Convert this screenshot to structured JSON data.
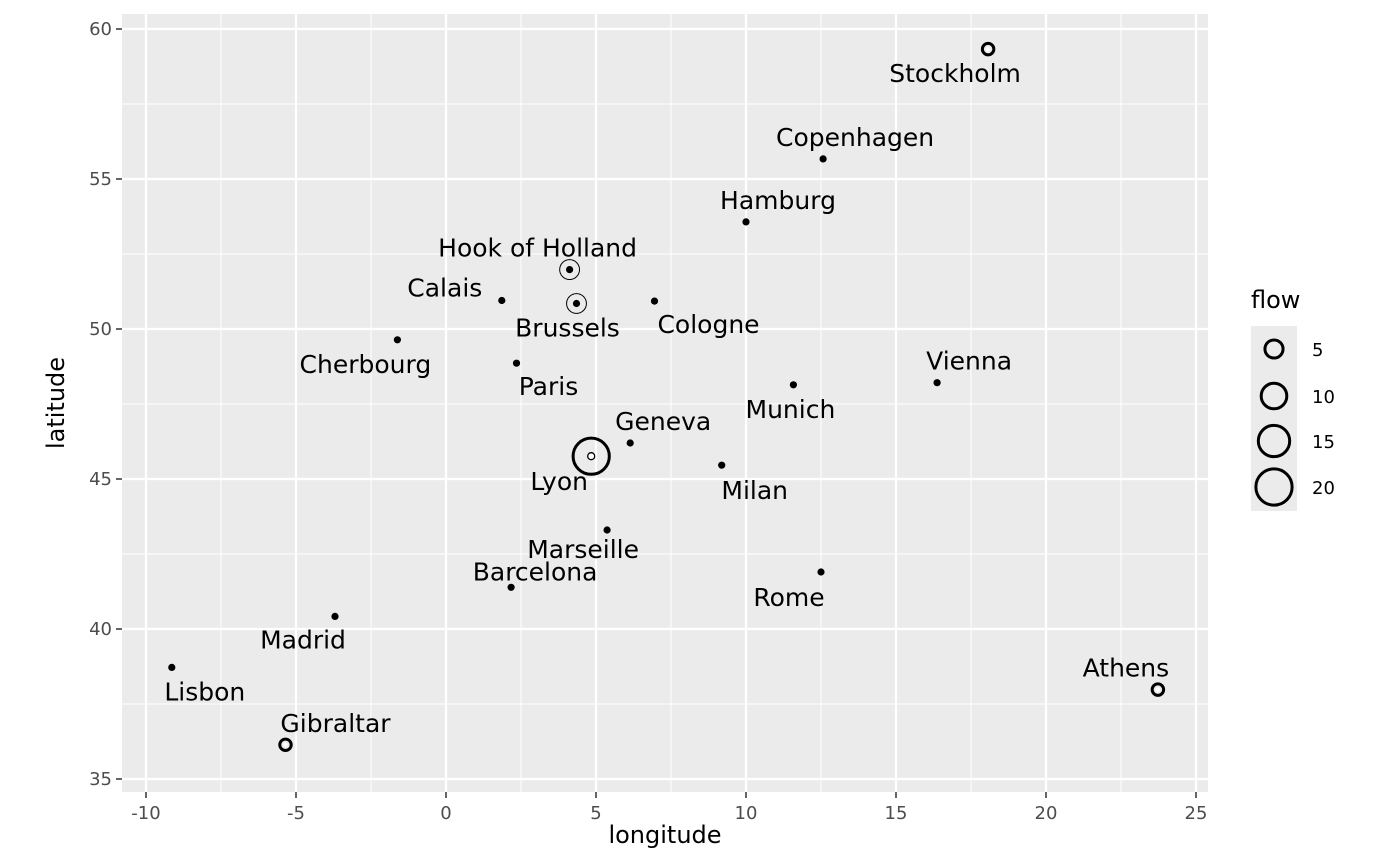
{
  "chart_data": {
    "type": "scatter",
    "title": "",
    "xlabel": "longitude",
    "ylabel": "latitude",
    "xlim": [
      -10.8,
      25.4
    ],
    "ylim": [
      34.5,
      60.5
    ],
    "xticks": [
      -10,
      -5,
      0,
      5,
      10,
      15,
      20,
      25
    ],
    "yticks": [
      35,
      40,
      45,
      50,
      55,
      60
    ],
    "grid": true,
    "legend": {
      "title": "flow",
      "position": "right",
      "entries": [
        5,
        10,
        15,
        20
      ]
    },
    "points": [
      {
        "name": "Stockholm",
        "x": 18.07,
        "y": 59.33,
        "flow": 2
      },
      {
        "name": "Copenhagen",
        "x": 12.57,
        "y": 55.67,
        "flow": 1
      },
      {
        "name": "Hamburg",
        "x": 10.0,
        "y": 53.57,
        "flow": 1
      },
      {
        "name": "Hook of Holland",
        "x": 4.12,
        "y": 51.98,
        "flow": 6
      },
      {
        "name": "Calais",
        "x": 1.86,
        "y": 50.95,
        "flow": 1
      },
      {
        "name": "Brussels",
        "x": 4.35,
        "y": 50.85,
        "flow": 6
      },
      {
        "name": "Cologne",
        "x": 6.95,
        "y": 50.93,
        "flow": 1
      },
      {
        "name": "Cherbourg",
        "x": -1.62,
        "y": 49.64,
        "flow": 1
      },
      {
        "name": "Paris",
        "x": 2.35,
        "y": 48.86,
        "flow": 1
      },
      {
        "name": "Vienna",
        "x": 16.37,
        "y": 48.21,
        "flow": 1
      },
      {
        "name": "Munich",
        "x": 11.58,
        "y": 48.14,
        "flow": 1
      },
      {
        "name": "Geneva",
        "x": 6.14,
        "y": 46.2,
        "flow": 1
      },
      {
        "name": "Lyon",
        "x": 4.84,
        "y": 45.76,
        "flow": 20
      },
      {
        "name": "Milan",
        "x": 9.19,
        "y": 45.46,
        "flow": 1
      },
      {
        "name": "Marseille",
        "x": 5.37,
        "y": 43.3,
        "flow": 1
      },
      {
        "name": "Barcelona",
        "x": 2.17,
        "y": 41.39,
        "flow": 1
      },
      {
        "name": "Rome",
        "x": 12.5,
        "y": 41.9,
        "flow": 1
      },
      {
        "name": "Madrid",
        "x": -3.7,
        "y": 40.42,
        "flow": 1
      },
      {
        "name": "Lisbon",
        "x": -9.14,
        "y": 38.72,
        "flow": 1
      },
      {
        "name": "Gibraltar",
        "x": -5.35,
        "y": 36.14,
        "flow": 2
      },
      {
        "name": "Athens",
        "x": 23.73,
        "y": 37.98,
        "flow": 2
      }
    ]
  }
}
